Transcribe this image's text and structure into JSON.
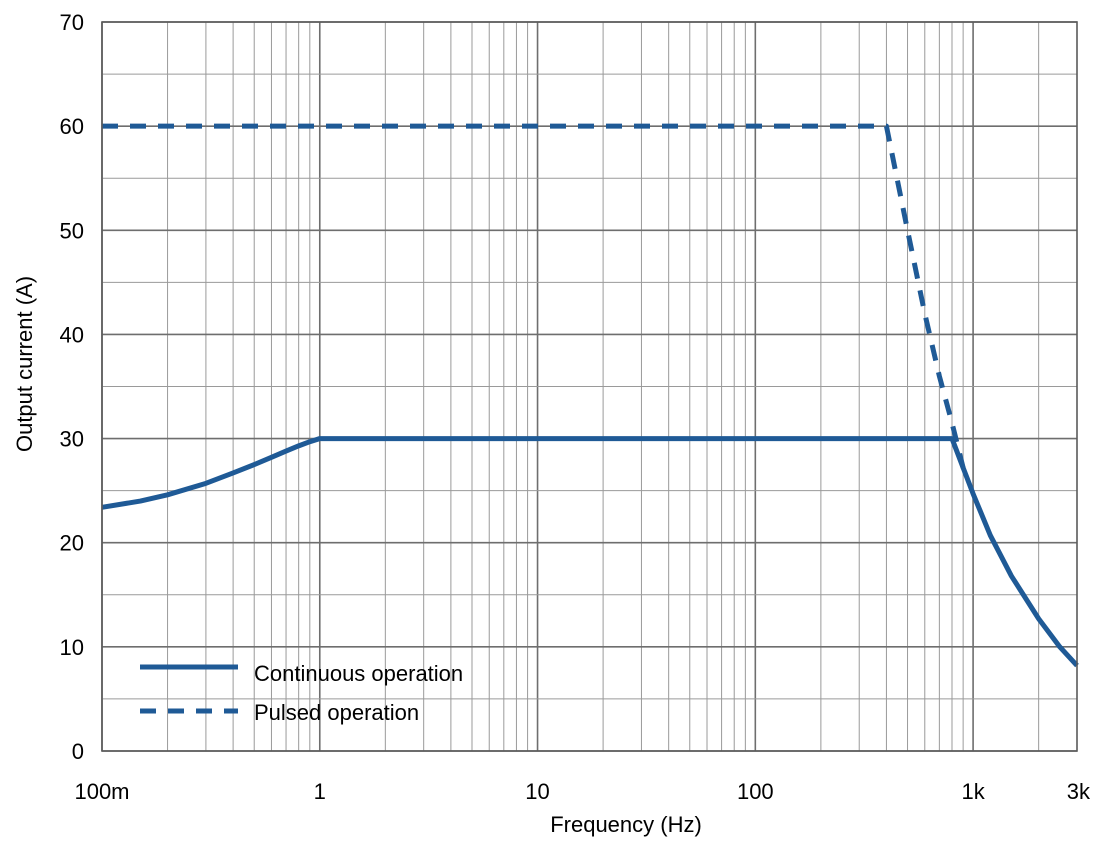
{
  "chart_data": {
    "type": "line",
    "xlabel": "Frequency (Hz)",
    "ylabel": "Output current (A)",
    "x_scale": "log",
    "xlim": [
      0.1,
      3000
    ],
    "ylim": [
      0,
      70
    ],
    "x_ticks": [
      {
        "value": 0.1,
        "label": "100m"
      },
      {
        "value": 1,
        "label": "1"
      },
      {
        "value": 10,
        "label": "10"
      },
      {
        "value": 100,
        "label": "100"
      },
      {
        "value": 1000,
        "label": "1k"
      },
      {
        "value": 3000,
        "label": "3k"
      }
    ],
    "y_ticks": [
      0,
      10,
      20,
      30,
      40,
      50,
      60,
      70
    ],
    "grid": true,
    "legend_position": "bottom-left",
    "line_color": "#1f5a96",
    "series": [
      {
        "name": "Continuous operation",
        "style": "solid",
        "points": [
          [
            0.1,
            23.4
          ],
          [
            0.15,
            24.0
          ],
          [
            0.2,
            24.6
          ],
          [
            0.3,
            25.7
          ],
          [
            0.4,
            26.7
          ],
          [
            0.5,
            27.5
          ],
          [
            0.6,
            28.2
          ],
          [
            0.7,
            28.8
          ],
          [
            0.8,
            29.3
          ],
          [
            0.9,
            29.7
          ],
          [
            1,
            30
          ],
          [
            10,
            30
          ],
          [
            100,
            30
          ],
          [
            800,
            30
          ],
          [
            900,
            27.2
          ],
          [
            1000,
            24.7
          ],
          [
            1200,
            20.7
          ],
          [
            1500,
            16.8
          ],
          [
            2000,
            12.7
          ],
          [
            2500,
            10.0
          ],
          [
            3000,
            8.2
          ]
        ]
      },
      {
        "name": "Pulsed operation",
        "style": "dashed",
        "points": [
          [
            0.1,
            60
          ],
          [
            1,
            60
          ],
          [
            10,
            60
          ],
          [
            100,
            60
          ],
          [
            400,
            60
          ],
          [
            500,
            50
          ],
          [
            600,
            42
          ],
          [
            700,
            36
          ],
          [
            800,
            31.5
          ],
          [
            900,
            27.2
          ]
        ]
      }
    ]
  }
}
